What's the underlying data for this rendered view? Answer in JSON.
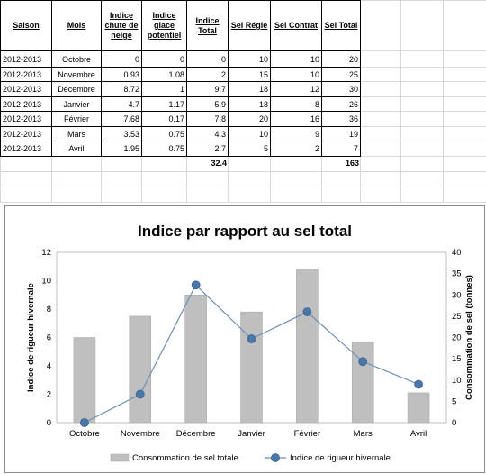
{
  "table": {
    "headers": [
      "Saison",
      "Mois",
      "Indice chute de neige",
      "Indice glace potentiel",
      "Indice Total",
      "Sel Régie",
      "Sel Contrat",
      "Sel Total"
    ],
    "rows": [
      [
        "2012-2013",
        "Octobre",
        "0",
        "0",
        "0",
        "10",
        "10",
        "20"
      ],
      [
        "2012-2013",
        "Novembre",
        "0.93",
        "1.08",
        "2",
        "15",
        "10",
        "25"
      ],
      [
        "2012-2013",
        "Décembre",
        "8.72",
        "1",
        "9.7",
        "18",
        "12",
        "30"
      ],
      [
        "2012-2013",
        "Janvier",
        "4.7",
        "1.17",
        "5.9",
        "18",
        "8",
        "26"
      ],
      [
        "2012-2013",
        "Février",
        "7.68",
        "0.17",
        "7.8",
        "20",
        "16",
        "36"
      ],
      [
        "2012-2013",
        "Mars",
        "3.53",
        "0.75",
        "4.3",
        "10",
        "9",
        "19"
      ],
      [
        "2012-2013",
        "Avril",
        "1.95",
        "0.75",
        "2.7",
        "5",
        "2",
        "7"
      ]
    ],
    "totals": {
      "indice_total": "32.4",
      "sel_total": "163"
    }
  },
  "chart_data": {
    "type": "bar",
    "title": "Indice par rapport au sel total",
    "categories": [
      "Octobre",
      "Novembre",
      "Décembre",
      "Janvier",
      "Février",
      "Mars",
      "Avril"
    ],
    "series": [
      {
        "name": "Consommation de sel totale",
        "kind": "bar",
        "axis": "right",
        "color": "#bfbfbf",
        "values": [
          20,
          25,
          30,
          26,
          36,
          19,
          7
        ]
      },
      {
        "name": "Indice de rigueur hivernale",
        "kind": "line",
        "axis": "left",
        "color": "#4f81bd",
        "values": [
          0,
          2,
          9.7,
          5.9,
          7.8,
          4.3,
          2.7
        ]
      }
    ],
    "ylabel": "Indice de rigueur hivernale",
    "y2label": "Consommation de sel (tonnes)",
    "ylim": [
      0,
      12
    ],
    "y2lim": [
      0,
      40
    ],
    "yticks": [
      "0",
      "2",
      "4",
      "6",
      "8",
      "10",
      "12"
    ],
    "y2ticks": [
      "0",
      "5",
      "10",
      "15",
      "20",
      "25",
      "30",
      "35",
      "40"
    ],
    "legend": "bottom",
    "grid": false
  }
}
